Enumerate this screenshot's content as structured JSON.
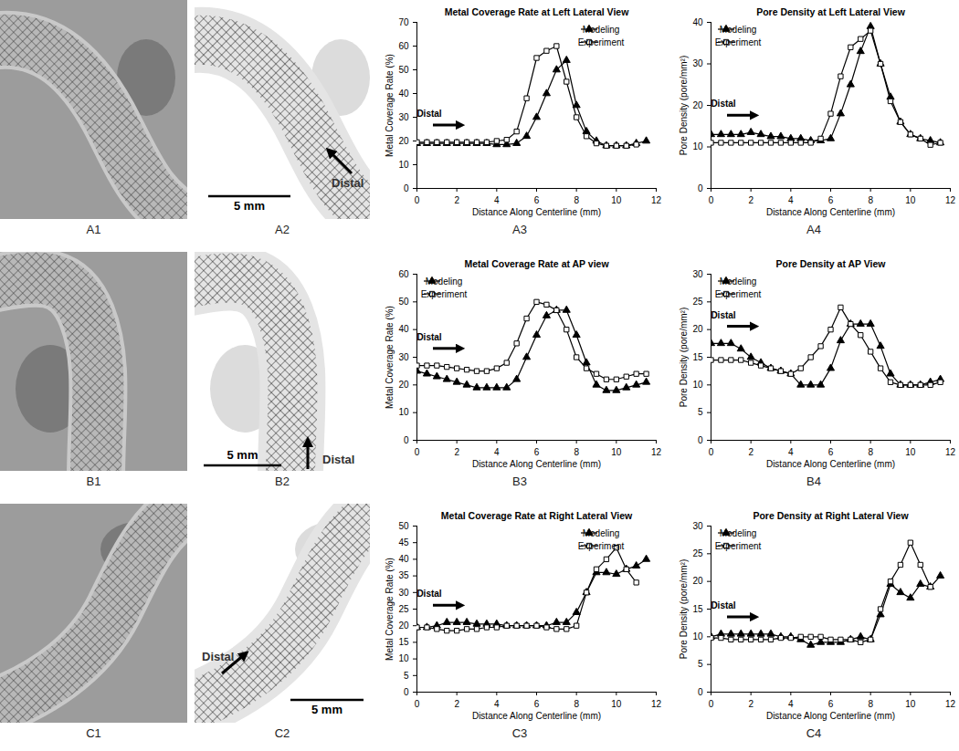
{
  "image_panels": [
    {
      "panel_label": "A1"
    },
    {
      "panel_label": "A2",
      "direction_label": "Distal",
      "scale_bar": "5 mm"
    },
    {
      "panel_label": "B1"
    },
    {
      "panel_label": "B2",
      "direction_label": "Distal",
      "scale_bar": "5 mm"
    },
    {
      "panel_label": "C1"
    },
    {
      "panel_label": "C2",
      "direction_label": "Distal",
      "scale_bar": "5 mm"
    }
  ],
  "chart_data": [
    {
      "panel_label": "A3",
      "type": "line",
      "title": "Metal Coverage Rate at Left Lateral View",
      "x_label": "Distance Along Centerline (mm)",
      "y_label": "Metal Coverage Rate (%)",
      "xlim": [
        0,
        12
      ],
      "xticks": [
        0,
        2,
        4,
        6,
        8,
        10,
        12
      ],
      "ylim": [
        0,
        70
      ],
      "yticks": [
        0,
        10,
        20,
        30,
        40,
        50,
        60,
        70
      ],
      "legend": "top-right",
      "annotations": [
        "Distal"
      ],
      "series": [
        {
          "name": "Modeling",
          "color": "#000000",
          "marker": "triangle",
          "x": [
            0,
            0.5,
            1,
            1.5,
            2,
            2.5,
            3,
            3.5,
            4,
            4.5,
            5,
            5.5,
            6,
            6.5,
            7,
            7.5,
            8,
            8.5,
            9,
            9.5,
            10,
            10.5,
            11,
            11.5
          ],
          "values": [
            19,
            19,
            19,
            19,
            19,
            19,
            19,
            19,
            18.5,
            18.5,
            19,
            22,
            30,
            40,
            50,
            54,
            35,
            24,
            20,
            18,
            18,
            18,
            19,
            20
          ]
        },
        {
          "name": "Experiment",
          "color": "#000000",
          "marker": "square",
          "x": [
            0,
            0.5,
            1,
            1.5,
            2,
            2.5,
            3,
            3.5,
            4,
            4.5,
            5,
            5.5,
            6,
            6.5,
            7,
            7.5,
            8,
            8.5,
            9,
            9.5,
            10,
            10.5,
            11
          ],
          "values": [
            19.5,
            19.5,
            19.5,
            19.5,
            19.5,
            19.5,
            19.5,
            19.5,
            20,
            20.5,
            24,
            38,
            55,
            58,
            60,
            45,
            30,
            22,
            19,
            18,
            18,
            18,
            18.5
          ]
        }
      ]
    },
    {
      "panel_label": "A4",
      "type": "line",
      "title": "Pore Density at Left Lateral View",
      "x_label": "Distance Along Centerline (mm)",
      "y_label": "Pore Density (pore/mm²)",
      "xlim": [
        0,
        12
      ],
      "xticks": [
        0,
        2,
        4,
        6,
        8,
        10,
        12
      ],
      "ylim": [
        0,
        40
      ],
      "yticks": [
        0,
        10,
        20,
        30,
        40
      ],
      "legend": "top-left",
      "annotations": [
        "Distal"
      ],
      "series": [
        {
          "name": "Modeling",
          "color": "#000000",
          "marker": "triangle",
          "x": [
            0,
            0.5,
            1,
            1.5,
            2,
            2.5,
            3,
            3.5,
            4,
            4.5,
            5,
            5.5,
            6,
            6.5,
            7,
            7.5,
            8,
            8.5,
            9,
            9.5,
            10,
            10.5,
            11,
            11.5
          ],
          "values": [
            13,
            13,
            13,
            13,
            13.5,
            13,
            12.5,
            12.5,
            12,
            12,
            11.5,
            11.5,
            12,
            18,
            25,
            33,
            39,
            30,
            22,
            16,
            13,
            12,
            11.5,
            11
          ]
        },
        {
          "name": "Experiment",
          "color": "#000000",
          "marker": "square",
          "x": [
            0,
            0.5,
            1,
            1.5,
            2,
            2.5,
            3,
            3.5,
            4,
            4.5,
            5,
            5.5,
            6,
            6.5,
            7,
            7.5,
            8,
            8.5,
            9,
            9.5,
            10,
            10.5,
            11,
            11.5
          ],
          "values": [
            11,
            11,
            11,
            11,
            11,
            11,
            11,
            11,
            11,
            11,
            11,
            12,
            18,
            27,
            34,
            36,
            38,
            30,
            21,
            16,
            13,
            12,
            10.5,
            11
          ]
        }
      ]
    },
    {
      "panel_label": "B3",
      "type": "line",
      "title": "Metal Coverage Rate at AP view",
      "x_label": "Distance Along Centerline (mm)",
      "y_label": "Metal Coverage Rate (%)",
      "xlim": [
        0,
        12
      ],
      "xticks": [
        0,
        2,
        4,
        6,
        8,
        10,
        12
      ],
      "ylim": [
        0,
        60
      ],
      "yticks": [
        0,
        10,
        20,
        30,
        40,
        50,
        60
      ],
      "legend": "top-left",
      "annotations": [
        "Distal"
      ],
      "series": [
        {
          "name": "Modeling",
          "color": "#000000",
          "marker": "triangle",
          "x": [
            0,
            0.5,
            1,
            1.5,
            2,
            2.5,
            3,
            3.5,
            4,
            4.5,
            5,
            5.5,
            6,
            6.5,
            7,
            7.5,
            8,
            8.5,
            9,
            9.5,
            10,
            10.5,
            11,
            11.5
          ],
          "values": [
            25,
            24,
            23,
            22,
            21,
            20,
            19,
            19,
            19,
            19,
            22,
            30,
            38,
            45,
            47,
            47,
            38,
            28,
            20,
            18,
            18,
            19,
            20,
            21
          ]
        },
        {
          "name": "Experiment",
          "color": "#000000",
          "marker": "square",
          "x": [
            0,
            0.5,
            1,
            1.5,
            2,
            2.5,
            3,
            3.5,
            4,
            4.5,
            5,
            5.5,
            6,
            6.5,
            7,
            7.5,
            8,
            8.5,
            9,
            9.5,
            10,
            10.5,
            11,
            11.5
          ],
          "values": [
            27,
            27,
            27,
            26.5,
            26,
            25.5,
            25,
            25,
            26,
            28,
            35,
            44,
            50,
            49,
            47,
            40,
            30,
            26,
            24,
            22,
            22,
            23,
            24,
            24
          ]
        }
      ]
    },
    {
      "panel_label": "B4",
      "type": "line",
      "title": "Pore Density at AP View",
      "x_label": "Distance Along Centerline (mm)",
      "y_label": "Pore Density (pore/mm²)",
      "xlim": [
        0,
        12
      ],
      "xticks": [
        0,
        2,
        4,
        6,
        8,
        10,
        12
      ],
      "ylim": [
        0,
        30
      ],
      "yticks": [
        0,
        5,
        10,
        15,
        20,
        25,
        30
      ],
      "legend": "top-left",
      "annotations": [
        "Distal"
      ],
      "series": [
        {
          "name": "Modeling",
          "color": "#000000",
          "marker": "triangle",
          "x": [
            0,
            0.5,
            1,
            1.5,
            2,
            2.5,
            3,
            3.5,
            4,
            4.5,
            5,
            5.5,
            6,
            6.5,
            7,
            7.5,
            8,
            8.5,
            9,
            9.5,
            10,
            10.5,
            11,
            11.5
          ],
          "values": [
            17.5,
            17.5,
            17.5,
            16.5,
            15,
            14,
            13,
            12.5,
            12,
            10,
            10,
            10,
            13,
            18,
            21,
            21,
            21,
            17,
            12,
            10,
            10,
            10,
            10.5,
            11
          ]
        },
        {
          "name": "Experiment",
          "color": "#000000",
          "marker": "square",
          "x": [
            0,
            0.5,
            1,
            1.5,
            2,
            2.5,
            3,
            3.5,
            4,
            4.5,
            5,
            5.5,
            6,
            6.5,
            7,
            7.5,
            8,
            8.5,
            9,
            9.5,
            10,
            10.5,
            11,
            11.5
          ],
          "values": [
            14.5,
            14.5,
            14.5,
            14.5,
            14,
            13.5,
            13,
            12.5,
            12,
            13,
            15,
            17,
            20,
            24,
            21,
            19,
            16,
            13,
            10.5,
            10,
            10,
            10,
            10,
            10.5
          ]
        }
      ]
    },
    {
      "panel_label": "C3",
      "type": "line",
      "title": "Metal Coverage Rate at Right Lateral View",
      "x_label": "Distance Along Centerline (mm)",
      "y_label": "Metal Coverage Rate (%)",
      "xlim": [
        0,
        12
      ],
      "xticks": [
        0,
        2,
        4,
        6,
        8,
        10,
        12
      ],
      "ylim": [
        0,
        50
      ],
      "yticks": [
        0,
        5,
        10,
        15,
        20,
        25,
        30,
        35,
        40,
        45,
        50
      ],
      "legend": "top-right",
      "annotations": [
        "Distal"
      ],
      "series": [
        {
          "name": "Modeling",
          "color": "#000000",
          "marker": "triangle",
          "x": [
            0,
            0.5,
            1,
            1.5,
            2,
            2.5,
            3,
            3.5,
            4,
            4.5,
            5,
            5.5,
            6,
            6.5,
            7,
            7.5,
            8,
            8.5,
            9,
            9.5,
            10,
            10.5,
            11,
            11.5
          ],
          "values": [
            19.5,
            19.5,
            20,
            21,
            21,
            21,
            20.5,
            20.5,
            20.5,
            20,
            20,
            20,
            20,
            20,
            21,
            21,
            24,
            30,
            36,
            36,
            35.5,
            37,
            38,
            40
          ]
        },
        {
          "name": "Experiment",
          "color": "#000000",
          "marker": "square",
          "x": [
            0,
            0.5,
            1,
            1.5,
            2,
            2.5,
            3,
            3.5,
            4,
            4.5,
            5,
            5.5,
            6,
            6.5,
            7,
            7.5,
            8,
            8.5,
            9,
            9.5,
            10,
            10.5,
            11
          ],
          "values": [
            19.5,
            19.5,
            19,
            18.5,
            18.5,
            19,
            19,
            19.5,
            19.5,
            20,
            20,
            20,
            20,
            19.5,
            19,
            19,
            20,
            30,
            37,
            40,
            43.5,
            37,
            33
          ]
        }
      ]
    },
    {
      "panel_label": "C4",
      "type": "line",
      "title": "Pore Density at Right Lateral View",
      "x_label": "Distance Along Centerline (mm)",
      "y_label": "Pore Density (pore/mm²)",
      "xlim": [
        0,
        12
      ],
      "xticks": [
        0,
        2,
        4,
        6,
        8,
        10,
        12
      ],
      "ylim": [
        0,
        30
      ],
      "yticks": [
        0,
        5,
        10,
        15,
        20,
        25,
        30
      ],
      "legend": "top-left",
      "annotations": [
        "Distal"
      ],
      "series": [
        {
          "name": "Modeling",
          "color": "#000000",
          "marker": "triangle",
          "x": [
            0,
            0.5,
            1,
            1.5,
            2,
            2.5,
            3,
            3.5,
            4,
            4.5,
            5,
            5.5,
            6,
            6.5,
            7,
            7.5,
            8,
            8.5,
            9,
            9.5,
            10,
            10.5,
            11,
            11.5
          ],
          "values": [
            10,
            10.5,
            10.5,
            10.5,
            10.5,
            10.5,
            10.5,
            10,
            10,
            9.5,
            8.5,
            9,
            9,
            9,
            9.5,
            10,
            9.5,
            14,
            19.5,
            18,
            17,
            19.5,
            19,
            21
          ]
        },
        {
          "name": "Experiment",
          "color": "#000000",
          "marker": "square",
          "x": [
            0,
            0.5,
            1,
            1.5,
            2,
            2.5,
            3,
            3.5,
            4,
            4.5,
            5,
            5.5,
            6,
            6.5,
            7,
            7.5,
            8,
            8.5,
            9,
            9.5,
            10,
            10.5,
            11
          ],
          "values": [
            9.8,
            9.8,
            9.5,
            9.5,
            9.5,
            9.5,
            9.5,
            9.8,
            9.8,
            10,
            10,
            10,
            9.5,
            9.5,
            9.5,
            9,
            9.5,
            15,
            20,
            23,
            27,
            23,
            19
          ]
        }
      ]
    }
  ]
}
